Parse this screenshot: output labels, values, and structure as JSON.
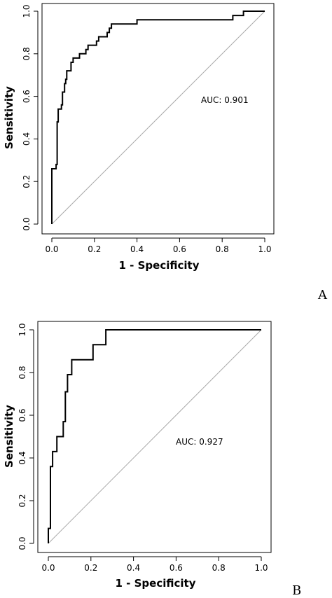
{
  "chart_data": [
    {
      "type": "line",
      "panel_label": "A",
      "xlabel": "1 - Specificity",
      "ylabel": "Sensitivity",
      "xlim": [
        0,
        1
      ],
      "ylim": [
        0,
        1
      ],
      "x_ticks": [
        "0.0",
        "0.2",
        "0.4",
        "0.6",
        "0.8",
        "1.0"
      ],
      "y_ticks": [
        "0.0",
        "0.2",
        "0.4",
        "0.6",
        "0.8",
        "1.0"
      ],
      "annotation": "AUC: 0.901",
      "reference_line": [
        [
          0,
          0
        ],
        [
          1,
          1
        ]
      ],
      "grid": false,
      "series": [
        {
          "points": [
            [
              0.0,
              0.0
            ],
            [
              0.0,
              0.26
            ],
            [
              0.02,
              0.26
            ],
            [
              0.02,
              0.28
            ],
            [
              0.025,
              0.28
            ],
            [
              0.025,
              0.48
            ],
            [
              0.03,
              0.48
            ],
            [
              0.03,
              0.54
            ],
            [
              0.045,
              0.54
            ],
            [
              0.045,
              0.56
            ],
            [
              0.05,
              0.56
            ],
            [
              0.05,
              0.62
            ],
            [
              0.06,
              0.62
            ],
            [
              0.06,
              0.66
            ],
            [
              0.065,
              0.66
            ],
            [
              0.065,
              0.68
            ],
            [
              0.07,
              0.68
            ],
            [
              0.07,
              0.72
            ],
            [
              0.09,
              0.72
            ],
            [
              0.09,
              0.76
            ],
            [
              0.1,
              0.76
            ],
            [
              0.1,
              0.78
            ],
            [
              0.13,
              0.78
            ],
            [
              0.13,
              0.8
            ],
            [
              0.16,
              0.8
            ],
            [
              0.16,
              0.82
            ],
            [
              0.17,
              0.82
            ],
            [
              0.17,
              0.84
            ],
            [
              0.21,
              0.84
            ],
            [
              0.21,
              0.86
            ],
            [
              0.22,
              0.86
            ],
            [
              0.22,
              0.88
            ],
            [
              0.26,
              0.88
            ],
            [
              0.26,
              0.9
            ],
            [
              0.27,
              0.9
            ],
            [
              0.27,
              0.92
            ],
            [
              0.28,
              0.92
            ],
            [
              0.28,
              0.94
            ],
            [
              0.4,
              0.94
            ],
            [
              0.4,
              0.96
            ],
            [
              0.85,
              0.96
            ],
            [
              0.85,
              0.98
            ],
            [
              0.9,
              0.98
            ],
            [
              0.9,
              1.0
            ],
            [
              1.0,
              1.0
            ]
          ]
        }
      ]
    },
    {
      "type": "line",
      "panel_label": "B",
      "xlabel": "1 - Specificity",
      "ylabel": "Sensitivity",
      "xlim": [
        0,
        1
      ],
      "ylim": [
        0,
        1
      ],
      "x_ticks": [
        "0.0",
        "0.2",
        "0.4",
        "0.6",
        "0.8",
        "1.0"
      ],
      "y_ticks": [
        "0.0",
        "0.2",
        "0.4",
        "0.6",
        "0.8",
        "1.0"
      ],
      "annotation": "AUC: 0.927",
      "reference_line": [
        [
          0,
          0
        ],
        [
          1,
          1
        ]
      ],
      "grid": false,
      "series": [
        {
          "points": [
            [
              0.0,
              0.0
            ],
            [
              0.0,
              0.07
            ],
            [
              0.01,
              0.07
            ],
            [
              0.01,
              0.36
            ],
            [
              0.02,
              0.36
            ],
            [
              0.02,
              0.43
            ],
            [
              0.04,
              0.43
            ],
            [
              0.04,
              0.5
            ],
            [
              0.07,
              0.5
            ],
            [
              0.07,
              0.57
            ],
            [
              0.08,
              0.57
            ],
            [
              0.08,
              0.71
            ],
            [
              0.09,
              0.71
            ],
            [
              0.09,
              0.79
            ],
            [
              0.11,
              0.79
            ],
            [
              0.11,
              0.86
            ],
            [
              0.21,
              0.86
            ],
            [
              0.21,
              0.93
            ],
            [
              0.27,
              0.93
            ],
            [
              0.27,
              1.0
            ],
            [
              1.0,
              1.0
            ]
          ]
        }
      ]
    }
  ]
}
